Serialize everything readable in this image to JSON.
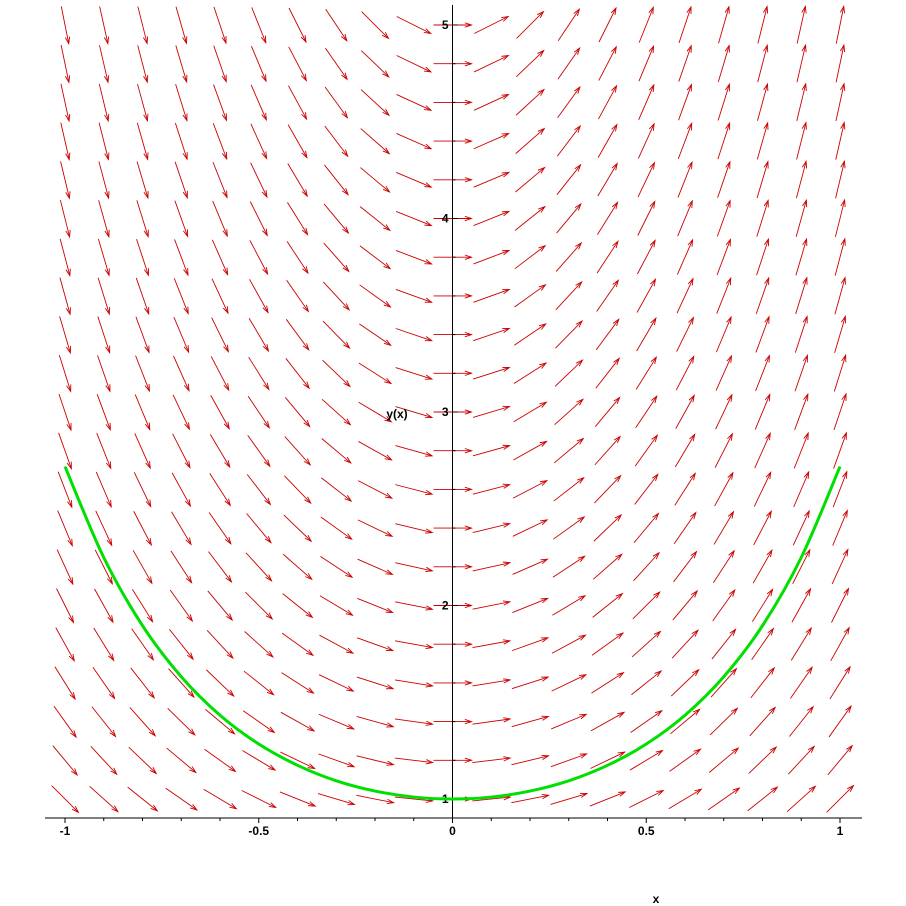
{
  "chart_data": {
    "type": "line",
    "title": "",
    "xlabel": "x",
    "ylabel": "y(x)",
    "xlim": [
      -1,
      1
    ],
    "ylim": [
      1,
      5
    ],
    "x_ticks": [
      "-1",
      "-0.5",
      "0",
      "0.5",
      "1"
    ],
    "y_ticks": [
      "1",
      "2",
      "3",
      "4",
      "5"
    ],
    "x_tick_values": [
      -1,
      -0.5,
      0,
      0.5,
      1
    ],
    "y_tick_values": [
      1,
      2,
      3,
      4,
      5
    ],
    "direction_field": {
      "equation": "dy/dx = 2*x*y",
      "grid_x": [
        -1,
        -0.9,
        -0.8,
        -0.7,
        -0.6,
        -0.5,
        -0.4,
        -0.3,
        -0.2,
        -0.1,
        0,
        0.1,
        0.2,
        0.3,
        0.4,
        0.5,
        0.6,
        0.7,
        0.8,
        0.9,
        1
      ],
      "grid_y": [
        1,
        1.2,
        1.4,
        1.6,
        1.8,
        2,
        2.2,
        2.4,
        2.6,
        2.8,
        3,
        3.2,
        3.4,
        3.6,
        3.8,
        4,
        4.2,
        4.4,
        4.6,
        4.8,
        5
      ],
      "color": "#cc0000"
    },
    "series": [
      {
        "color": "#00e000",
        "x": [
          -1,
          -0.9,
          -0.8,
          -0.7,
          -0.6,
          -0.5,
          -0.4,
          -0.3,
          -0.2,
          -0.1,
          0,
          0.1,
          0.2,
          0.3,
          0.4,
          0.5,
          0.6,
          0.7,
          0.8,
          0.9,
          1
        ],
        "y": [
          2.718,
          2.248,
          1.896,
          1.632,
          1.433,
          1.284,
          1.174,
          1.094,
          1.041,
          1.01,
          1.0,
          1.01,
          1.041,
          1.094,
          1.174,
          1.284,
          1.433,
          1.632,
          1.896,
          2.248,
          2.718
        ]
      }
    ]
  }
}
